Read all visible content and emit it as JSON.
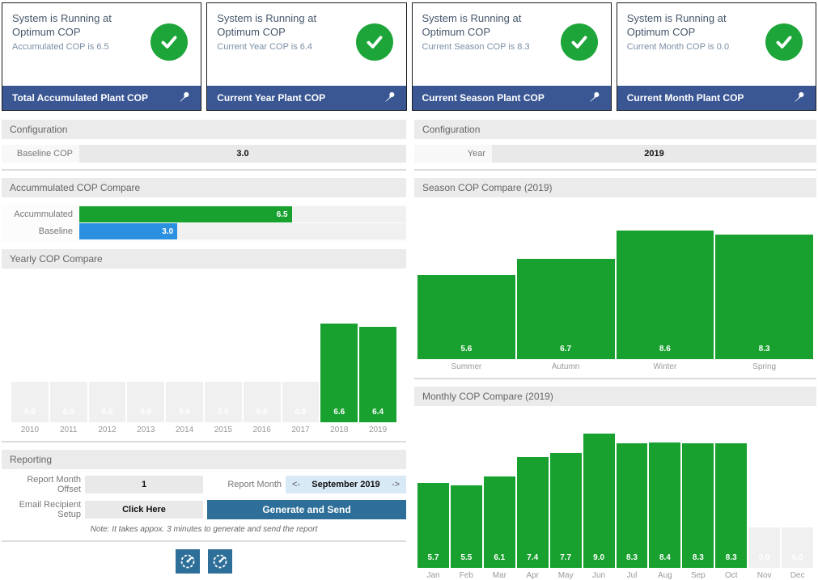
{
  "colors": {
    "bar_green": "#18a12f",
    "badge_green": "#1ea53a",
    "baseline_blue": "#2b90e0",
    "footer_navy": "#3a5794",
    "button_steel_blue": "#2e6f99",
    "month_field_blue": "#d9eaf7",
    "empty_bar_gray": "#f0f0f0"
  },
  "cards": [
    {
      "title": "System is Running at Optimum COP",
      "subtitle": "Accumulated COP is 6.5",
      "footer": "Total Accumulated Plant COP",
      "status_icon": "check-circle",
      "pin_icon": "pushpin"
    },
    {
      "title": "System is Running at Optimum COP",
      "subtitle": "Current Year COP is 6.4",
      "footer": "Current Year Plant COP",
      "status_icon": "check-circle",
      "pin_icon": "pushpin"
    },
    {
      "title": "System is Running at Optimum COP",
      "subtitle": "Current Season COP is 8.3",
      "footer": "Current Season Plant COP",
      "status_icon": "check-circle",
      "pin_icon": "pushpin"
    },
    {
      "title": "System is Running at Optimum COP",
      "subtitle": "Current Month COP is 0.0",
      "footer": "Current Month Plant COP",
      "status_icon": "check-circle",
      "pin_icon": "pushpin"
    }
  ],
  "left": {
    "config": {
      "header": "Configuration",
      "label": "Baseline COP",
      "value": "3.0"
    },
    "accum_header": "Accummulated COP Compare",
    "yearly_header": "Yearly COP Compare",
    "reporting": {
      "header": "Reporting",
      "offset_label": "Report Month Offset",
      "offset_value": "1",
      "month_label": "Report Month",
      "month_prev": "<-",
      "month_value": "September 2019",
      "month_next": "->",
      "email_label": "Email Recipient Setup",
      "email_value": "Click Here",
      "generate_label": "Generate and Send",
      "note": "Note: It takes appox. 3 minutes to generate and send the report"
    }
  },
  "right": {
    "config": {
      "header": "Configuration",
      "label": "Year",
      "value": "2019"
    },
    "season_header": "Season COP Compare (2019)",
    "monthly_header": "Monthly COP Compare (2019)"
  },
  "chart_data": [
    {
      "id": "accum_compare",
      "type": "bar-horizontal",
      "title": "Accummulated COP Compare",
      "categories": [
        "Accummulated",
        "Baseline"
      ],
      "values": [
        6.5,
        3.0
      ],
      "colors": [
        "#18a12f",
        "#2b90e0"
      ],
      "xlim": [
        0,
        10
      ],
      "grid": false,
      "legend": "none"
    },
    {
      "id": "yearly",
      "type": "bar",
      "title": "Yearly COP Compare",
      "categories": [
        "2010",
        "2011",
        "2012",
        "2013",
        "2014",
        "2015",
        "2016",
        "2017",
        "2018",
        "2019"
      ],
      "values": [
        0.0,
        0.0,
        0.0,
        0.0,
        0.0,
        0.0,
        0.0,
        0.0,
        6.6,
        6.4
      ],
      "no_data_years": [
        "2010",
        "2011",
        "2012",
        "2013",
        "2014",
        "2015",
        "2016",
        "2017"
      ],
      "ylim": [
        0,
        10
      ],
      "grid": false,
      "legend": "none"
    },
    {
      "id": "season",
      "type": "bar",
      "title": "Season COP Compare (2019)",
      "categories": [
        "Summer",
        "Autumn",
        "Winter",
        "Spring"
      ],
      "values": [
        5.6,
        6.7,
        8.6,
        8.3
      ],
      "ylim": [
        0,
        10
      ],
      "grid": false,
      "legend": "none"
    },
    {
      "id": "monthly",
      "type": "bar",
      "title": "Monthly COP Compare (2019)",
      "categories": [
        "Jan",
        "Feb",
        "Mar",
        "Apr",
        "May",
        "Jun",
        "Jul",
        "Aug",
        "Sep",
        "Oct",
        "Nov",
        "Dec"
      ],
      "values": [
        5.7,
        5.5,
        6.1,
        7.4,
        7.7,
        9.0,
        8.3,
        8.4,
        8.3,
        8.3,
        0.0,
        0.0
      ],
      "no_data_months": [
        "Nov",
        "Dec"
      ],
      "ylim": [
        0,
        10
      ],
      "grid": false,
      "legend": "none"
    }
  ]
}
